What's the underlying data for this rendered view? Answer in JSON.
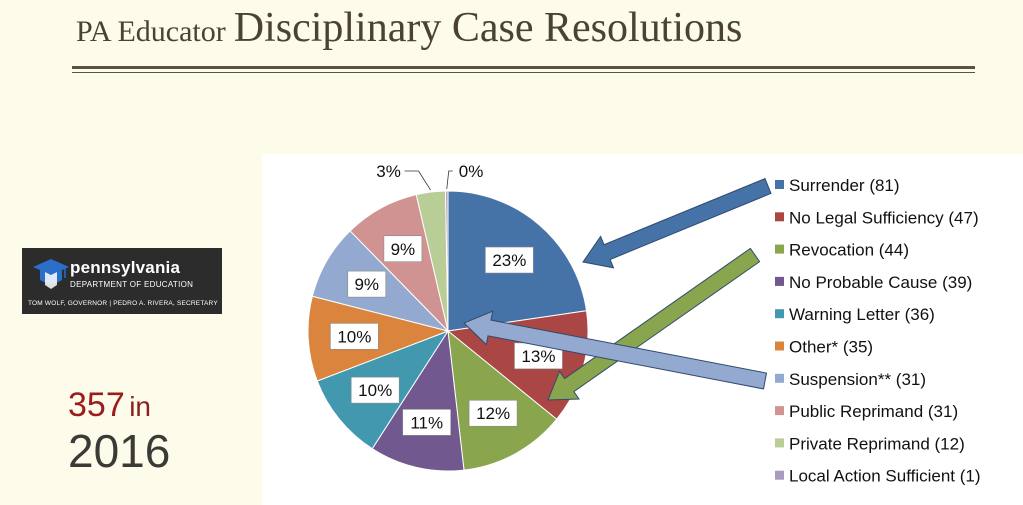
{
  "header": {
    "title_small": "PA Educator",
    "title_big": "Disciplinary Case Resolutions"
  },
  "logo": {
    "name": "pennsylvania",
    "department": "DEPARTMENT OF EDUCATION",
    "officials": "TOM WOLF, GOVERNOR  |  PEDRO A. RIVERA, SECRETARY"
  },
  "stat": {
    "count": "357",
    "connector": "in",
    "year": "2016"
  },
  "chart_data": {
    "type": "pie",
    "slices": [
      {
        "label": "Surrender (81)",
        "value": 81,
        "pct_label": "23%",
        "color": "#4572a7"
      },
      {
        "label": "No Legal Sufficiency (47)",
        "value": 47,
        "pct_label": "13%",
        "color": "#aa4643"
      },
      {
        "label": "Revocation (44)",
        "value": 44,
        "pct_label": "12%",
        "color": "#89a54e"
      },
      {
        "label": "No Probable Cause (39)",
        "value": 39,
        "pct_label": "11%",
        "color": "#71588f"
      },
      {
        "label": "Warning Letter (36)",
        "value": 36,
        "pct_label": "10%",
        "color": "#4198af"
      },
      {
        "label": "Other* (35)",
        "value": 35,
        "pct_label": "10%",
        "color": "#db843d"
      },
      {
        "label": "Suspension** (31)",
        "value": 31,
        "pct_label": "9%",
        "color": "#93a9cf"
      },
      {
        "label": "Public Reprimand (31)",
        "value": 31,
        "pct_label": "9%",
        "color": "#d19392"
      },
      {
        "label": "Private Reprimand (12)",
        "value": 12,
        "pct_label": "3%",
        "color": "#b9cd96"
      },
      {
        "label": "Local Action Sufficient (1)",
        "value": 1,
        "pct_label": "0%",
        "color": "#a99bbd"
      }
    ],
    "legend_position": "right",
    "start_angle": "12 o'clock, clockwise"
  }
}
